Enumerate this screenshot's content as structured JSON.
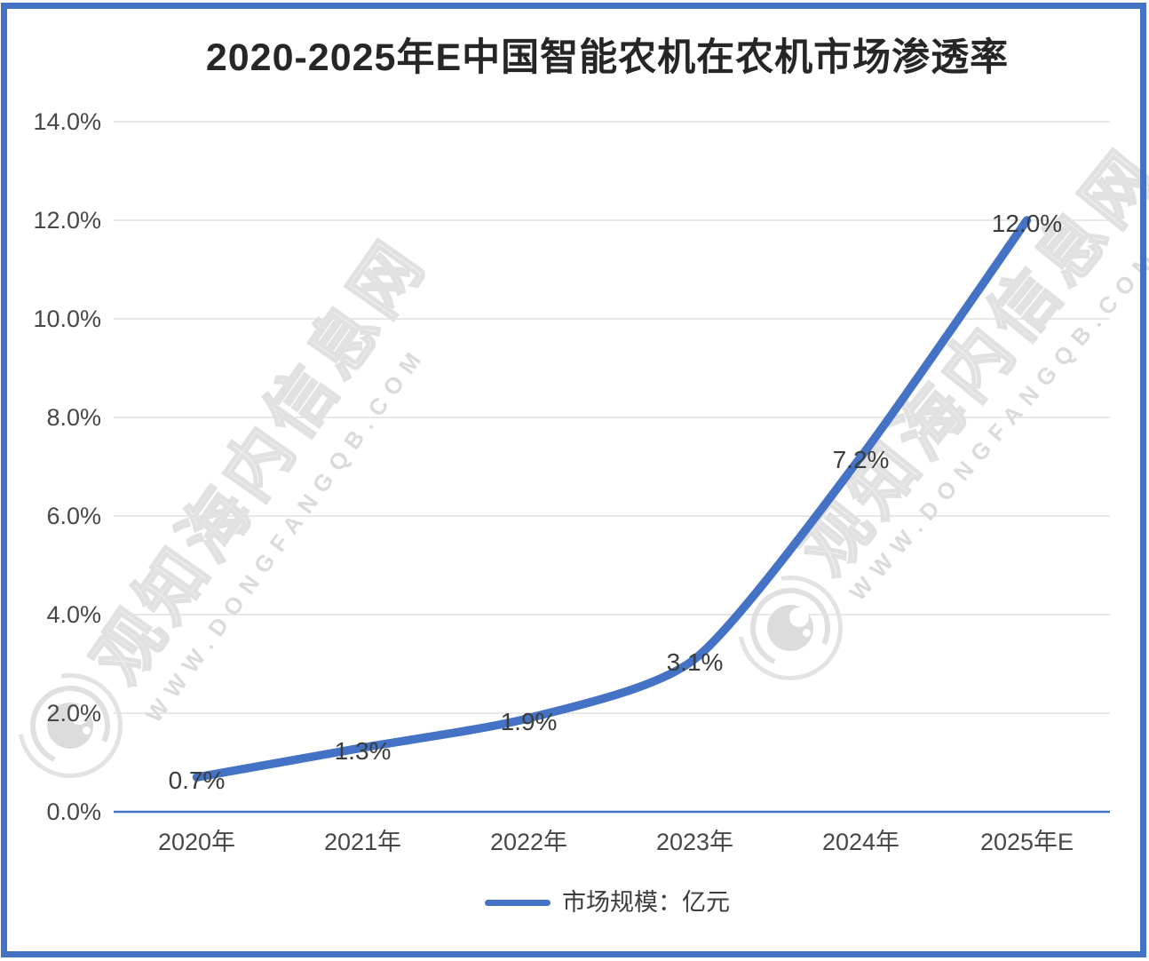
{
  "frame": {
    "border_color": "#4472C4",
    "background": "#FFFFFF"
  },
  "watermark": {
    "cn_text": "观知海内信息网",
    "en_text": "WWW.DONGFANGQB.COM",
    "logo": "eye-swirl-logo",
    "color": "#E2E2E2"
  },
  "colors": {
    "accent_blue": "#4472C4",
    "gridline": "#D9D9D9",
    "axis_text": "#474747",
    "title_text": "#262626"
  },
  "chart_data": {
    "type": "line",
    "title": "2020-2025年E中国智能农机在农机市场渗透率",
    "categories": [
      "2020年",
      "2021年",
      "2022年",
      "2023年",
      "2024年",
      "2025年E"
    ],
    "series": [
      {
        "name": "市场规模：亿元",
        "color": "#4472C4",
        "values": [
          0.7,
          1.3,
          1.9,
          3.1,
          7.2,
          12.0
        ]
      }
    ],
    "data_labels": [
      "0.7%",
      "1.3%",
      "1.9%",
      "3.1%",
      "7.2%",
      "12.0%"
    ],
    "y_tick_labels": [
      "0.0%",
      "2.0%",
      "4.0%",
      "6.0%",
      "8.0%",
      "10.0%",
      "12.0%",
      "14.0%"
    ],
    "y_tick_step": 2,
    "ylim": [
      0,
      14
    ],
    "xlabel": "",
    "ylabel": "",
    "grid": "horizontal",
    "legend_position": "bottom",
    "smooth": true
  }
}
